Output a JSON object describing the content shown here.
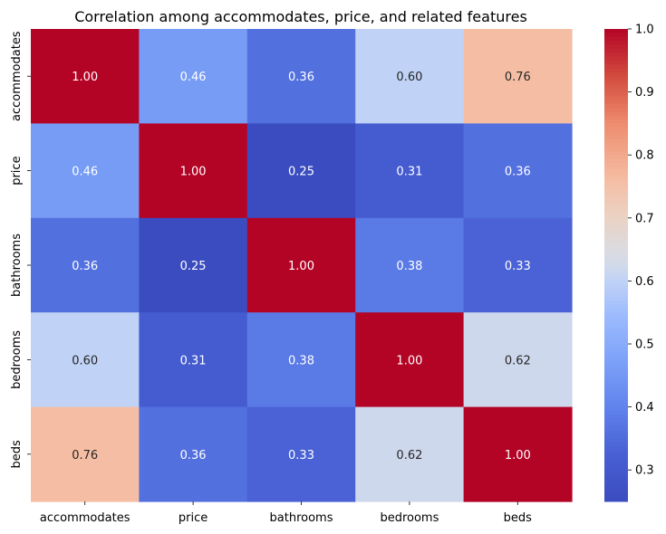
{
  "chart_data": {
    "type": "heatmap",
    "title": "Correlation among accommodates, price, and related features",
    "x_labels": [
      "accommodates",
      "price",
      "bathrooms",
      "bedrooms",
      "beds"
    ],
    "y_labels": [
      "accommodates",
      "price",
      "bathrooms",
      "bedrooms",
      "beds"
    ],
    "values": [
      [
        1.0,
        0.46,
        0.36,
        0.6,
        0.76
      ],
      [
        0.46,
        1.0,
        0.25,
        0.31,
        0.36
      ],
      [
        0.36,
        0.25,
        1.0,
        0.38,
        0.33
      ],
      [
        0.6,
        0.31,
        0.38,
        1.0,
        0.62
      ],
      [
        0.76,
        0.36,
        0.33,
        0.62,
        1.0
      ]
    ],
    "value_format": "0.00",
    "colormap": "coolwarm",
    "color_range": [
      0.25,
      1.0
    ],
    "colorbar": {
      "ticks": [
        0.3,
        0.4,
        0.5,
        0.6,
        0.7,
        0.8,
        0.9,
        1.0
      ],
      "tick_labels": [
        "0.3",
        "0.4",
        "0.5",
        "0.6",
        "0.7",
        "0.8",
        "0.9",
        "1.0"
      ]
    },
    "annotation_colors": {
      "light": "#ffffff",
      "dark": "#262626"
    }
  }
}
